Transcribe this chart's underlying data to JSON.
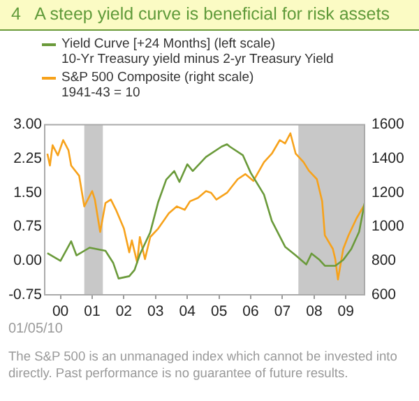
{
  "chart_data": {
    "type": "line",
    "title": "4   A steep yield curve is beneficial for risk assets",
    "legend": "top",
    "grid": false,
    "xlim": [
      "2000-01",
      "2010-02"
    ],
    "xticks": [
      {
        "value": "2000-07",
        "label": "00"
      },
      {
        "value": "2001-07",
        "label": "01"
      },
      {
        "value": "2002-07",
        "label": "02"
      },
      {
        "value": "2003-07",
        "label": "03"
      },
      {
        "value": "2004-07",
        "label": "04"
      },
      {
        "value": "2005-07",
        "label": "05"
      },
      {
        "value": "2006-07",
        "label": "06"
      },
      {
        "value": "2007-07",
        "label": "07"
      },
      {
        "value": "2008-07",
        "label": "08"
      },
      {
        "value": "2009-07",
        "label": "09"
      }
    ],
    "ylim": [
      -0.75,
      3
    ],
    "yticks": [
      {
        "value": -0.75,
        "label": "-0.75"
      },
      {
        "value": 0,
        "label": "0.00"
      },
      {
        "value": 0.75,
        "label": "0.75"
      },
      {
        "value": 1.5,
        "label": "1.50"
      },
      {
        "value": 2.25,
        "label": "2.25"
      },
      {
        "value": 3,
        "label": "3.00"
      }
    ],
    "y2lim": [
      600,
      1600
    ],
    "y2ticks": [
      600,
      800,
      1000,
      1200,
      1400,
      1600
    ],
    "bands": [
      {
        "axis": "x",
        "from": "2001-04",
        "to": "2001-11",
        "color": "#c8c8c8"
      },
      {
        "axis": "x",
        "from": "2008-01",
        "to": "2010-02",
        "color": "#c8c8c8"
      }
    ],
    "series": [
      {
        "name": "Yield Curve [+24 Months] (left scale)",
        "color": "#6a9a3a",
        "axis": "y",
        "x": [
          "2000-02",
          "2000-07",
          "2000-11",
          "2001-01",
          "2001-06",
          "2001-12",
          "2002-03",
          "2002-05",
          "2002-09",
          "2002-11",
          "2003-01",
          "2003-05",
          "2003-08",
          "2003-11",
          "2004-02",
          "2004-04",
          "2004-07",
          "2004-09",
          "2005-02",
          "2005-08",
          "2005-10",
          "2005-11",
          "2006-04",
          "2006-07",
          "2006-12",
          "2007-03",
          "2007-08",
          "2007-12",
          "2008-04",
          "2008-06",
          "2008-09",
          "2008-11",
          "2009-03",
          "2009-06",
          "2009-09",
          "2009-12",
          "2010-02"
        ],
        "values": [
          0.17,
          0.0,
          0.43,
          0.12,
          0.29,
          0.22,
          -0.05,
          -0.39,
          -0.34,
          -0.2,
          0.14,
          0.63,
          1.3,
          1.79,
          1.98,
          1.74,
          2.13,
          1.98,
          2.29,
          2.52,
          2.57,
          2.52,
          2.33,
          1.94,
          1.46,
          0.88,
          0.31,
          0.12,
          -0.08,
          0.16,
          0.02,
          -0.11,
          -0.11,
          0.02,
          0.26,
          0.64,
          1.27
        ]
      },
      {
        "name": "S&P 500 Composite (right scale)",
        "color": "#f7a21b",
        "axis": "y2",
        "x": [
          "2000-02",
          "2000-03",
          "2000-04",
          "2000-06",
          "2000-08",
          "2000-10",
          "2000-11",
          "2001-02",
          "2001-04",
          "2001-07",
          "2001-08",
          "2001-10",
          "2001-12",
          "2002-02",
          "2002-04",
          "2002-07",
          "2002-09",
          "2002-10",
          "2002-12",
          "2003-01",
          "2003-03",
          "2003-05",
          "2003-08",
          "2003-12",
          "2004-03",
          "2004-06",
          "2004-08",
          "2004-11",
          "2005-02",
          "2005-04",
          "2005-06",
          "2005-10",
          "2006-02",
          "2006-05",
          "2006-08",
          "2006-12",
          "2007-03",
          "2007-06",
          "2007-08",
          "2007-10",
          "2007-12",
          "2008-03",
          "2008-05",
          "2008-08",
          "2008-10",
          "2008-11",
          "2009-02",
          "2009-03",
          "2009-04",
          "2009-06",
          "2009-08",
          "2009-11",
          "2010-02"
        ],
        "values": [
          1430,
          1360,
          1480,
          1420,
          1510,
          1450,
          1360,
          1300,
          1120,
          1210,
          1160,
          970,
          1140,
          1160,
          1100,
          990,
          850,
          920,
          790,
          940,
          810,
          940,
          990,
          1080,
          1120,
          1100,
          1150,
          1170,
          1210,
          1200,
          1160,
          1200,
          1280,
          1310,
          1270,
          1380,
          1430,
          1510,
          1490,
          1550,
          1430,
          1380,
          1330,
          1280,
          1150,
          950,
          870,
          810,
          690,
          870,
          950,
          1050,
          1130
        ]
      }
    ],
    "annotations": [
      "10-Yr Treasury yield minus 2-yr Treasury Yield",
      "1941-43 = 10",
      "01/05/10",
      "The S&P 500 is an unmanaged index which cannot be invested into directly. Past performance is no guarantee of future results."
    ]
  }
}
